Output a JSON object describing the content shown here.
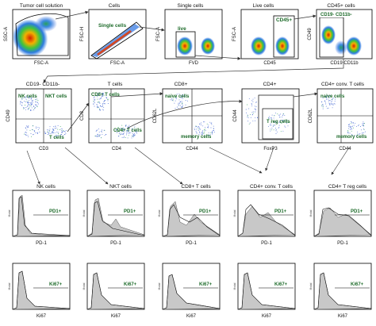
{
  "row1": [
    {
      "title": "Tumor cell solution",
      "x": "FSC-A",
      "y": "SSC-A"
    },
    {
      "title": "Cells",
      "x": "FSC-A",
      "y": "FSC-H",
      "gate": "Single cells"
    },
    {
      "title": "Single cells",
      "x": "FVD",
      "y": "FSC-A",
      "gate": "live"
    },
    {
      "title": "Live cells",
      "x": "CD45",
      "y": "FSC-A",
      "gate": "CD45+"
    },
    {
      "title": "CD45+ cells",
      "x": "CD19 CD11b",
      "y": "CD49",
      "gate": "CD19- CD11b-"
    }
  ],
  "row2": [
    {
      "title": "CD19- CD11b-",
      "x": "CD3",
      "y": "CD49",
      "gates": [
        "NK cells",
        "NKT cells",
        "T cells"
      ]
    },
    {
      "title": "T cells",
      "x": "CD4",
      "y": "CD8",
      "gates": [
        "CD8+ T cells",
        "CD4+ T cells"
      ]
    },
    {
      "title": "CD8+",
      "x": "CD44",
      "y": "CD62L",
      "gates": [
        "naive cells",
        "memory cells"
      ]
    },
    {
      "title": "CD4+",
      "x": "FoxP3",
      "y": "CD44",
      "gates": [
        "T reg cells"
      ]
    },
    {
      "title": "CD4+ conv. T cells",
      "x": "CD44",
      "y": "CD62L",
      "gates": [
        "naive cells",
        "memory cells"
      ]
    }
  ],
  "row3": {
    "titles": [
      "NK cells",
      "NKT cells",
      "CD8+ T cells",
      "CD4+ conv. T cells",
      "CD4+ T reg cells"
    ],
    "x": "PD-1",
    "marker": "PD1+",
    "modal": "Modal"
  },
  "row4": {
    "x": "Ki67",
    "marker": "Ki67+",
    "modal": "Modal"
  }
}
